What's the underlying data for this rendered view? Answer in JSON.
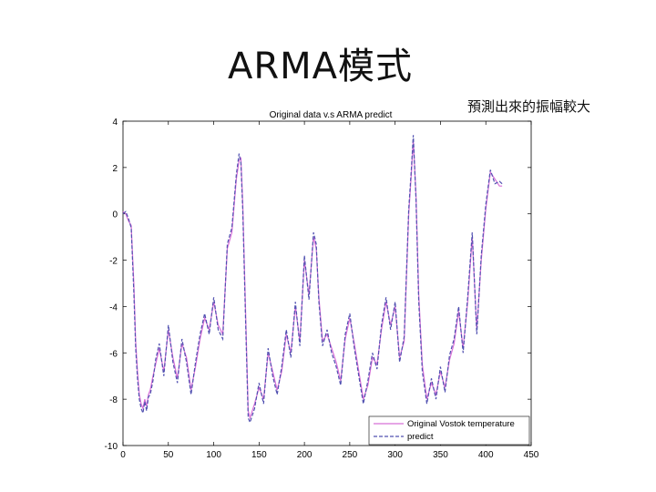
{
  "slide": {
    "title": "ARMA模式",
    "annotation": "預測出來的振幅較大"
  },
  "chart_data": {
    "type": "line",
    "title": "Original data v.s ARMA predict",
    "xlabel": "",
    "ylabel": "",
    "xlim": [
      0,
      450
    ],
    "ylim": [
      -10,
      4
    ],
    "xticks": [
      0,
      50,
      100,
      150,
      200,
      250,
      300,
      350,
      400,
      450
    ],
    "yticks": [
      4,
      2,
      0,
      -2,
      -4,
      -6,
      -8,
      -10
    ],
    "grid": false,
    "legend_position": "bottom-right",
    "series": [
      {
        "name": "Original Vostok temperature",
        "color": "#d870d8",
        "style": "solid",
        "x": [
          0,
          3,
          6,
          9,
          12,
          14,
          16,
          18,
          20,
          22,
          24,
          26,
          28,
          30,
          33,
          36,
          40,
          45,
          50,
          55,
          60,
          65,
          70,
          75,
          80,
          85,
          90,
          95,
          100,
          105,
          110,
          115,
          120,
          125,
          128,
          130,
          132,
          135,
          138,
          140,
          145,
          150,
          155,
          160,
          165,
          170,
          175,
          180,
          185,
          190,
          195,
          200,
          205,
          210,
          213,
          216,
          220,
          225,
          230,
          235,
          240,
          245,
          250,
          255,
          260,
          265,
          270,
          275,
          280,
          285,
          290,
          295,
          300,
          305,
          310,
          315,
          318,
          320,
          323,
          326,
          330,
          335,
          340,
          345,
          350,
          355,
          360,
          365,
          370,
          375,
          380,
          385,
          390,
          395,
          400,
          405,
          410,
          415,
          418
        ],
        "values": [
          0.1,
          0.0,
          -0.3,
          -0.5,
          -3.0,
          -5.5,
          -6.8,
          -7.8,
          -8.2,
          -8.4,
          -8.0,
          -8.3,
          -7.8,
          -7.6,
          -7.0,
          -6.5,
          -5.8,
          -6.8,
          -5.0,
          -6.2,
          -7.1,
          -5.6,
          -6.2,
          -7.6,
          -6.6,
          -5.4,
          -4.5,
          -5.0,
          -3.8,
          -4.8,
          -5.2,
          -1.5,
          -0.8,
          1.5,
          2.3,
          2.4,
          0.5,
          -4.0,
          -8.5,
          -8.8,
          -8.2,
          -7.5,
          -8.0,
          -6.0,
          -6.8,
          -7.6,
          -6.8,
          -5.2,
          -6.0,
          -4.0,
          -5.5,
          -2.0,
          -3.5,
          -1.0,
          -1.5,
          -3.6,
          -5.5,
          -5.2,
          -5.8,
          -6.4,
          -7.2,
          -5.4,
          -4.5,
          -5.6,
          -6.8,
          -8.0,
          -7.4,
          -6.2,
          -6.5,
          -5.0,
          -3.8,
          -4.8,
          -4.0,
          -6.2,
          -5.5,
          0.0,
          1.8,
          3.2,
          0.8,
          -3.5,
          -6.5,
          -8.0,
          -7.3,
          -7.8,
          -6.8,
          -7.5,
          -6.3,
          -5.6,
          -4.2,
          -5.8,
          -3.8,
          -1.0,
          -5.0,
          -2.0,
          0.2,
          1.8,
          1.5,
          1.2,
          1.2
        ]
      },
      {
        "name": "predict",
        "color": "#5050b0",
        "style": "dashed",
        "x": [
          0,
          3,
          6,
          9,
          12,
          14,
          16,
          18,
          20,
          22,
          24,
          26,
          28,
          30,
          33,
          36,
          40,
          45,
          50,
          55,
          60,
          65,
          70,
          75,
          80,
          85,
          90,
          95,
          100,
          105,
          110,
          115,
          120,
          125,
          128,
          130,
          132,
          135,
          138,
          140,
          145,
          150,
          155,
          160,
          165,
          170,
          175,
          180,
          185,
          190,
          195,
          200,
          205,
          210,
          213,
          216,
          220,
          225,
          230,
          235,
          240,
          245,
          250,
          255,
          260,
          265,
          270,
          275,
          280,
          285,
          290,
          295,
          300,
          305,
          310,
          315,
          318,
          320,
          323,
          326,
          330,
          335,
          340,
          345,
          350,
          355,
          360,
          365,
          370,
          375,
          380,
          385,
          390,
          395,
          400,
          405,
          410,
          415,
          418
        ],
        "values": [
          0.0,
          0.1,
          -0.2,
          -0.6,
          -3.4,
          -5.8,
          -7.1,
          -8.0,
          -8.4,
          -8.6,
          -8.1,
          -8.5,
          -7.9,
          -7.8,
          -7.2,
          -6.3,
          -5.6,
          -7.0,
          -4.8,
          -6.4,
          -7.3,
          -5.4,
          -6.4,
          -7.8,
          -6.4,
          -5.2,
          -4.3,
          -5.2,
          -3.6,
          -5.0,
          -5.4,
          -1.3,
          -0.6,
          1.7,
          2.6,
          2.2,
          0.2,
          -4.4,
          -8.8,
          -9.0,
          -8.4,
          -7.3,
          -8.2,
          -5.8,
          -7.0,
          -7.8,
          -6.6,
          -5.0,
          -6.2,
          -3.8,
          -5.7,
          -1.8,
          -3.7,
          -0.8,
          -1.3,
          -3.8,
          -5.7,
          -5.0,
          -6.0,
          -6.6,
          -7.4,
          -5.2,
          -4.3,
          -5.8,
          -7.0,
          -8.2,
          -7.2,
          -6.0,
          -6.7,
          -4.8,
          -3.6,
          -5.0,
          -3.8,
          -6.4,
          -5.3,
          0.2,
          2.0,
          3.4,
          0.6,
          -3.8,
          -6.8,
          -8.2,
          -7.1,
          -8.0,
          -6.6,
          -7.7,
          -6.1,
          -5.4,
          -4.0,
          -6.0,
          -3.6,
          -0.8,
          -5.2,
          -1.8,
          0.4,
          1.9,
          1.3,
          1.4,
          1.3
        ]
      }
    ]
  }
}
